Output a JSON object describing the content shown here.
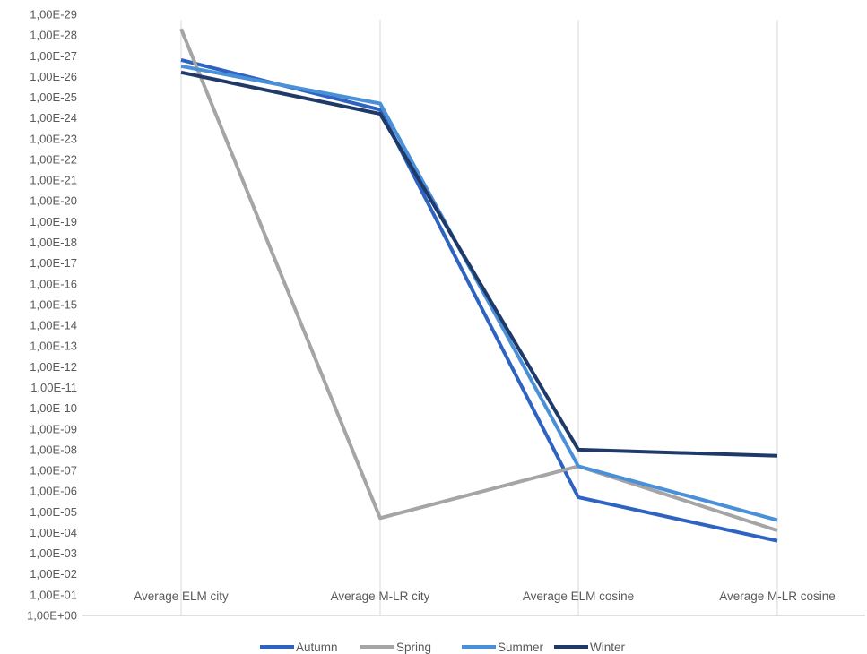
{
  "chart_data": {
    "type": "line",
    "title": "",
    "xlabel": "",
    "ylabel": "",
    "y_scale": "log",
    "y_axis_reversed": true,
    "ylim_exponent": [
      0,
      -29
    ],
    "ytick_labels": [
      "1,00E+00",
      "1,00E-01",
      "1,00E-02",
      "1,00E-03",
      "1,00E-04",
      "1,00E-05",
      "1,00E-06",
      "1,00E-07",
      "1,00E-08",
      "1,00E-09",
      "1,00E-10",
      "1,00E-11",
      "1,00E-12",
      "1,00E-13",
      "1,00E-14",
      "1,00E-15",
      "1,00E-16",
      "1,00E-17",
      "1,00E-18",
      "1,00E-19",
      "1,00E-20",
      "1,00E-21",
      "1,00E-22",
      "1,00E-23",
      "1,00E-24",
      "1,00E-25",
      "1,00E-26",
      "1,00E-27",
      "1,00E-28",
      "1,00E-29"
    ],
    "categories": [
      "Average ELM city",
      "Average M-LR city",
      "Average ELM cosine",
      "Average M-LR cosine"
    ],
    "series": [
      {
        "name": "Autumn",
        "color": "#2E63C2",
        "exponent": [
          -26.8,
          -24.4,
          -5.7,
          -3.6
        ]
      },
      {
        "name": "Spring",
        "color": "#A5A5A5",
        "exponent": [
          -28.3,
          -4.7,
          -7.2,
          -4.1
        ]
      },
      {
        "name": "Summer",
        "color": "#4A90D9",
        "exponent": [
          -26.5,
          -24.7,
          -7.2,
          -4.6
        ]
      },
      {
        "name": "Winter",
        "color": "#1F3A68",
        "exponent": [
          -26.2,
          -24.2,
          -8.0,
          -7.7
        ]
      }
    ],
    "grid": "vertical-category-lines",
    "legend_position": "bottom"
  }
}
